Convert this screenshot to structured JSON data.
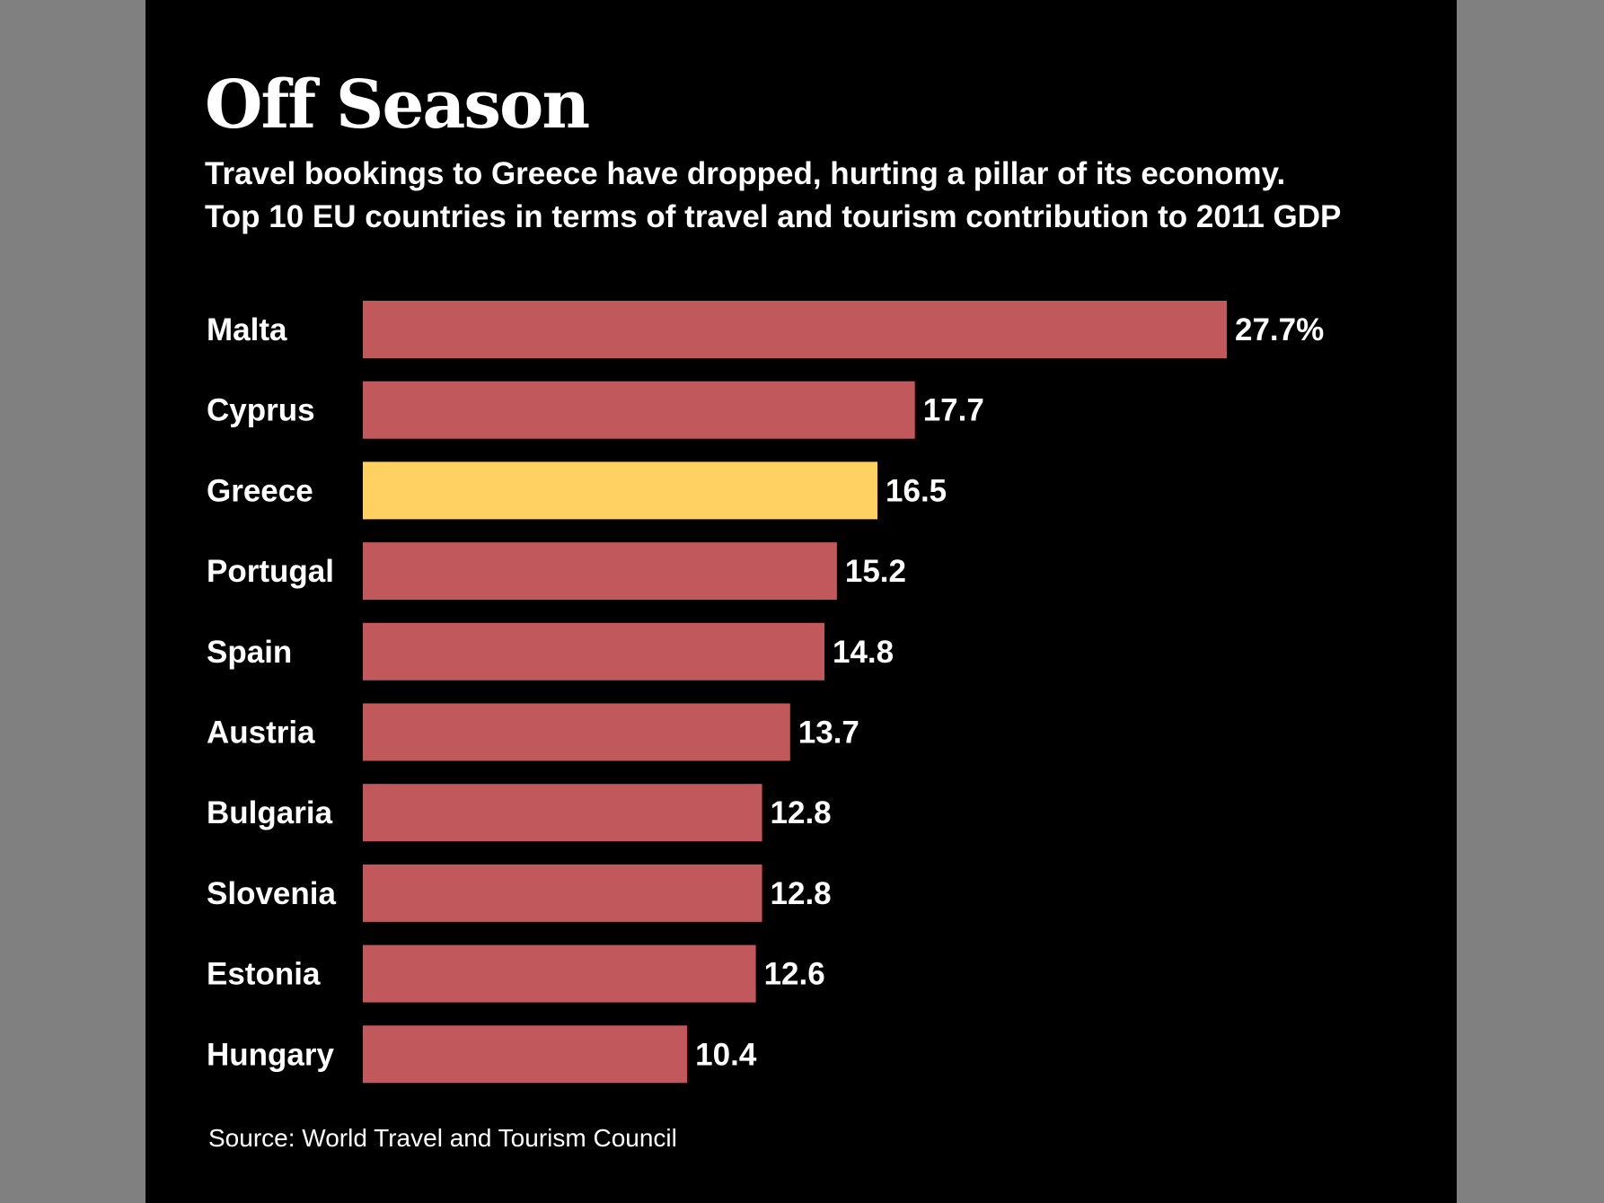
{
  "chart_data": {
    "type": "bar",
    "orientation": "horizontal",
    "title": "Off Season",
    "subtitle_lines": [
      "Travel bookings to Greece have dropped, hurting a pillar of its economy.",
      "Top 10 EU countries in terms of travel and tourism contribution to 2011 GDP"
    ],
    "categories": [
      "Malta",
      "Cyprus",
      "Greece",
      "Portugal",
      "Spain",
      "Austria",
      "Bulgaria",
      "Slovenia",
      "Estonia",
      "Hungary"
    ],
    "values": [
      27.7,
      17.7,
      16.5,
      15.2,
      14.8,
      13.7,
      12.8,
      12.8,
      12.6,
      10.4
    ],
    "value_labels": [
      "27.7%",
      "17.7",
      "16.5",
      "15.2",
      "14.8",
      "13.7",
      "12.8",
      "12.8",
      "12.6",
      "10.4"
    ],
    "highlight_category": "Greece",
    "xlim": [
      0,
      27.7
    ],
    "grid": false,
    "legend": "none",
    "source": "Source: World Travel and Tourism Council"
  },
  "colors": {
    "bar": "#c1585b",
    "highlight": "#ffd162",
    "background": "#000000",
    "page": "#808080",
    "text": "#ffffff"
  }
}
